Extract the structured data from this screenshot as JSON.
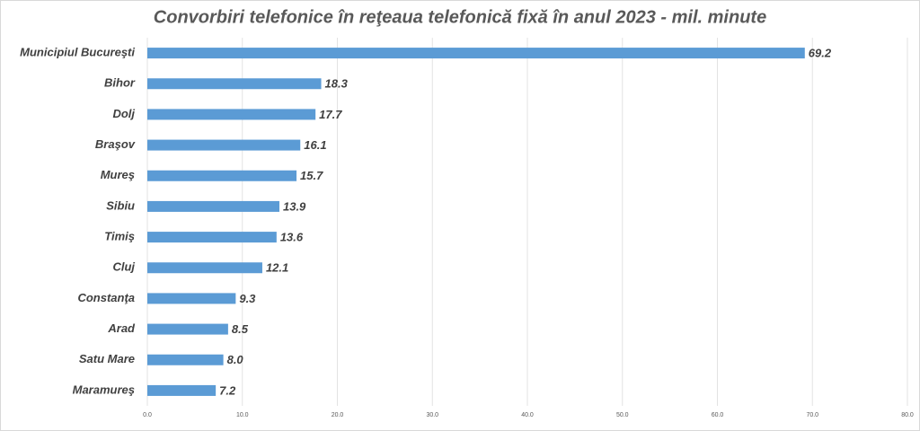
{
  "chart_data": {
    "type": "barh",
    "title": "Convorbiri telefonice în reţeaua telefonică fixă în anul 2023 - mil. minute",
    "categories": [
      "Municipiul Bucureşti",
      "Bihor",
      "Dolj",
      "Braşov",
      "Mureş",
      "Sibiu",
      "Timiş",
      "Cluj",
      "Constanţa",
      "Arad",
      "Satu Mare",
      "Maramureş"
    ],
    "values": [
      69.2,
      18.3,
      17.7,
      16.1,
      15.7,
      13.9,
      13.6,
      12.1,
      9.3,
      8.5,
      8.0,
      7.2
    ],
    "value_labels": [
      "69.2",
      "18.3",
      "17.7",
      "16.1",
      "15.7",
      "13.9",
      "13.6",
      "12.1",
      "9.3",
      "8.5",
      "8.0",
      "7.2"
    ],
    "color": "#5b9bd5",
    "xlim": [
      0,
      80
    ],
    "xticks": [
      {
        "value": 0,
        "label": "0.0"
      },
      {
        "value": 10,
        "label": "10.0"
      },
      {
        "value": 20,
        "label": "20.0"
      },
      {
        "value": 30,
        "label": "30.0"
      },
      {
        "value": 40,
        "label": "40.0"
      },
      {
        "value": 50,
        "label": "50.0"
      },
      {
        "value": 60,
        "label": "60.0"
      },
      {
        "value": 70,
        "label": "70.0"
      },
      {
        "value": 80,
        "label": "80.0"
      }
    ],
    "grid": true
  }
}
